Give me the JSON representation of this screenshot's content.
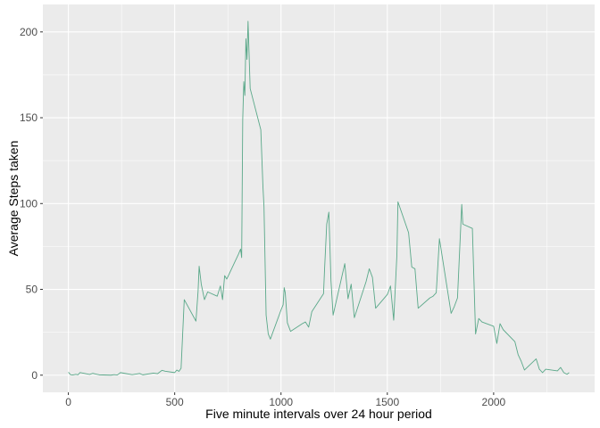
{
  "chart_data": {
    "type": "line",
    "title": "",
    "xlabel": "Five minute intervals over 24 hour period",
    "ylabel": "Average Steps taken",
    "xlim": [
      -120,
      2475
    ],
    "ylim": [
      -10,
      216
    ],
    "xticks": [
      0,
      500,
      1000,
      1500,
      2000
    ],
    "xtick_labels": [
      "0",
      "500",
      "1000",
      "1500",
      "2000"
    ],
    "yticks": [
      0,
      50,
      100,
      150,
      200
    ],
    "ytick_labels": [
      "0",
      "50",
      "100",
      "150",
      "200"
    ],
    "grid": true,
    "legend": "none",
    "series": [
      {
        "color": "#5aa889",
        "x": [
          0,
          10,
          20,
          35,
          45,
          55,
          100,
          115,
          130,
          145,
          200,
          215,
          230,
          245,
          300,
          320,
          335,
          350,
          400,
          420,
          440,
          455,
          500,
          510,
          520,
          530,
          545,
          600,
          610,
          615,
          625,
          640,
          655,
          700,
          715,
          725,
          735,
          745,
          800,
          810,
          815,
          820,
          825,
          830,
          835,
          840,
          845,
          855,
          905,
          915,
          920,
          930,
          940,
          950,
          1000,
          1010,
          1015,
          1020,
          1030,
          1045,
          1100,
          1115,
          1130,
          1145,
          1200,
          1205,
          1215,
          1225,
          1235,
          1245,
          1300,
          1315,
          1330,
          1345,
          1400,
          1415,
          1430,
          1445,
          1500,
          1515,
          1530,
          1545,
          1550,
          1600,
          1615,
          1630,
          1645,
          1700,
          1715,
          1730,
          1745,
          1800,
          1815,
          1830,
          1845,
          1850,
          1855,
          1900,
          1915,
          1930,
          1945,
          2000,
          2015,
          2030,
          2045,
          2100,
          2115,
          2130,
          2145,
          2200,
          2215,
          2230,
          2245,
          2300,
          2315,
          2330,
          2345,
          2355
        ],
        "values": [
          1.7,
          0.3,
          0.1,
          0.5,
          0.2,
          1.5,
          0.4,
          1.1,
          0.6,
          0.2,
          0.0,
          0.3,
          0.1,
          1.5,
          0.3,
          0.7,
          1.0,
          0.2,
          1.2,
          0.9,
          2.8,
          2.3,
          1.5,
          3.0,
          2.2,
          4.0,
          44.0,
          31.5,
          49.0,
          63.5,
          53.0,
          44.0,
          48.5,
          46.0,
          52.0,
          44.0,
          58.0,
          56.0,
          70.5,
          73.5,
          68.5,
          149.0,
          171.0,
          163.0,
          196.0,
          184.0,
          206.2,
          167.0,
          143.0,
          110.0,
          98.0,
          35.0,
          24.0,
          21.0,
          38.0,
          41.0,
          51.0,
          48.0,
          30.5,
          25.5,
          30.0,
          31.0,
          28.0,
          37.0,
          47.5,
          62.0,
          88.0,
          95.0,
          55.0,
          35.0,
          65.0,
          44.5,
          53.0,
          33.5,
          54.5,
          62.0,
          57.0,
          39.0,
          47.0,
          52.0,
          32.0,
          70.0,
          101.0,
          83.0,
          63.0,
          62.0,
          39.0,
          45.0,
          46.0,
          48.0,
          79.5,
          36.0,
          40.0,
          45.0,
          86.0,
          99.5,
          88.0,
          85.5,
          24.0,
          33.0,
          31.0,
          28.5,
          18.5,
          30.0,
          26.5,
          19.5,
          12.0,
          8.0,
          3.0,
          9.5,
          3.5,
          1.5,
          3.5,
          2.5,
          4.5,
          1.5,
          0.5,
          1.5
        ]
      }
    ]
  }
}
